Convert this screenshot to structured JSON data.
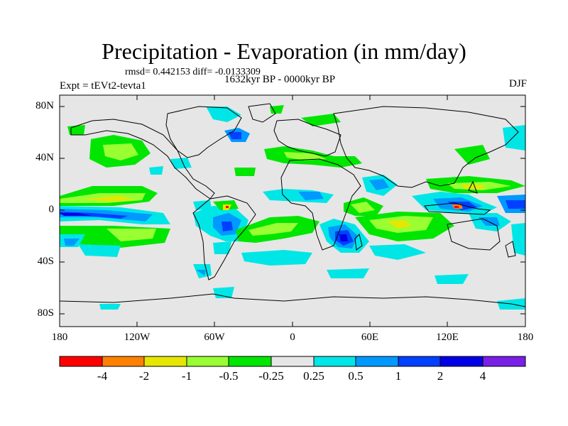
{
  "title": "Precipitation - Evaporation (in mm/day)",
  "stats": "rmsd= 0.442153 diff= -0.0133309",
  "period": "1632kyr BP - 0000kyr BP",
  "experiment": "Expt = tEVt2-tevta1",
  "season": "DJF",
  "map": {
    "latitude_ticks": [
      "80N",
      "40N",
      "0",
      "40S",
      "80S"
    ],
    "longitude_ticks": [
      "180",
      "120W",
      "60W",
      "0",
      "60E",
      "120E",
      "180"
    ]
  },
  "colorbar": {
    "labels": [
      "-4",
      "-2",
      "-1",
      "-0.5",
      "-0.25",
      "0.25",
      "0.5",
      "1",
      "2",
      "4"
    ],
    "colors": [
      "#ff0000",
      "#ff8000",
      "#e6e600",
      "#99ff33",
      "#00e600",
      "#e6e6e6",
      "#00e6e6",
      "#0099ff",
      "#0040ff",
      "#0000e6",
      "#7a1fe6"
    ]
  }
}
